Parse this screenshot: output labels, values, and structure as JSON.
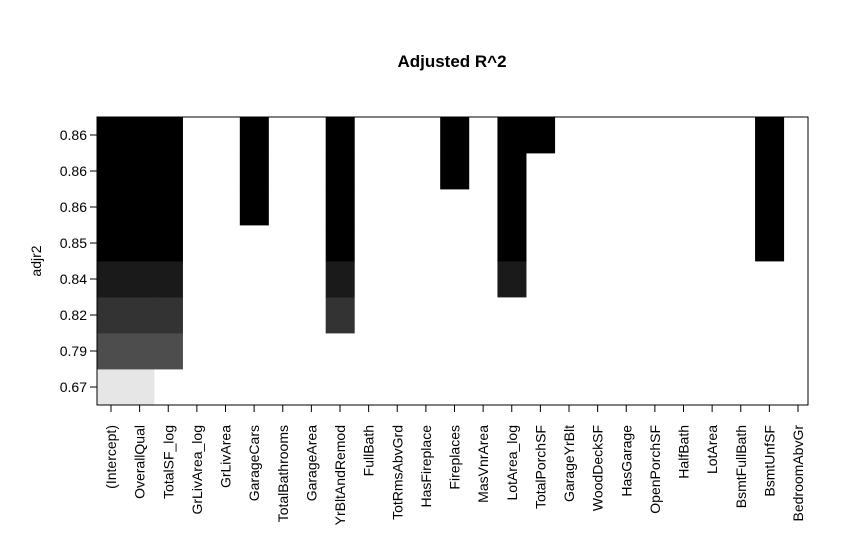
{
  "chart_data": {
    "type": "heatmap",
    "title": "Adjusted R^2",
    "xlabel": "",
    "ylabel": "adjr2",
    "categories": [
      "(Intercept)",
      "OverallQual",
      "TotalSF_log",
      "GrLivArea_log",
      "GrLivArea",
      "GarageCars",
      "TotalBathrooms",
      "GarageArea",
      "YrBltAndRemod",
      "FullBath",
      "TotRmsAbvGrd",
      "HasFireplace",
      "Fireplaces",
      "MasVnrArea",
      "LotArea_log",
      "TotalPorchSF",
      "GarageYrBlt",
      "WoodDeckSF",
      "HasGarage",
      "OpenPorchSF",
      "HalfBath",
      "LotArea",
      "BsmtFullBath",
      "BsmtUnfSF",
      "BedroomAbvGr"
    ],
    "row_labels": [
      "0.67",
      "0.79",
      "0.82",
      "0.84",
      "0.85",
      "0.86",
      "0.86",
      "0.86"
    ],
    "included": [
      [
        1,
        1,
        0,
        0,
        0,
        0,
        0,
        0,
        0,
        0,
        0,
        0,
        0,
        0,
        0,
        0,
        0,
        0,
        0,
        0,
        0,
        0,
        0,
        0,
        0
      ],
      [
        1,
        1,
        1,
        0,
        0,
        0,
        0,
        0,
        0,
        0,
        0,
        0,
        0,
        0,
        0,
        0,
        0,
        0,
        0,
        0,
        0,
        0,
        0,
        0,
        0
      ],
      [
        1,
        1,
        1,
        0,
        0,
        0,
        0,
        0,
        1,
        0,
        0,
        0,
        0,
        0,
        0,
        0,
        0,
        0,
        0,
        0,
        0,
        0,
        0,
        0,
        0
      ],
      [
        1,
        1,
        1,
        0,
        0,
        0,
        0,
        0,
        1,
        0,
        0,
        0,
        0,
        0,
        1,
        0,
        0,
        0,
        0,
        0,
        0,
        0,
        0,
        0,
        0
      ],
      [
        1,
        1,
        1,
        0,
        0,
        0,
        0,
        0,
        1,
        0,
        0,
        0,
        0,
        0,
        1,
        0,
        0,
        0,
        0,
        0,
        0,
        0,
        0,
        1,
        0
      ],
      [
        1,
        1,
        1,
        0,
        0,
        1,
        0,
        0,
        1,
        0,
        0,
        0,
        0,
        0,
        1,
        0,
        0,
        0,
        0,
        0,
        0,
        0,
        0,
        1,
        0
      ],
      [
        1,
        1,
        1,
        0,
        0,
        1,
        0,
        0,
        1,
        0,
        0,
        0,
        1,
        0,
        1,
        0,
        0,
        0,
        0,
        0,
        0,
        0,
        0,
        1,
        0
      ],
      [
        1,
        1,
        1,
        0,
        0,
        1,
        0,
        0,
        1,
        0,
        0,
        0,
        1,
        0,
        1,
        1,
        0,
        0,
        0,
        0,
        0,
        0,
        0,
        1,
        0
      ]
    ],
    "row_colors": [
      "#e6e6e6",
      "#4d4d4d",
      "#333333",
      "#1a1a1a",
      "#000000",
      "#000000",
      "#000000",
      "#000000"
    ],
    "grid": false,
    "legend": "none"
  }
}
